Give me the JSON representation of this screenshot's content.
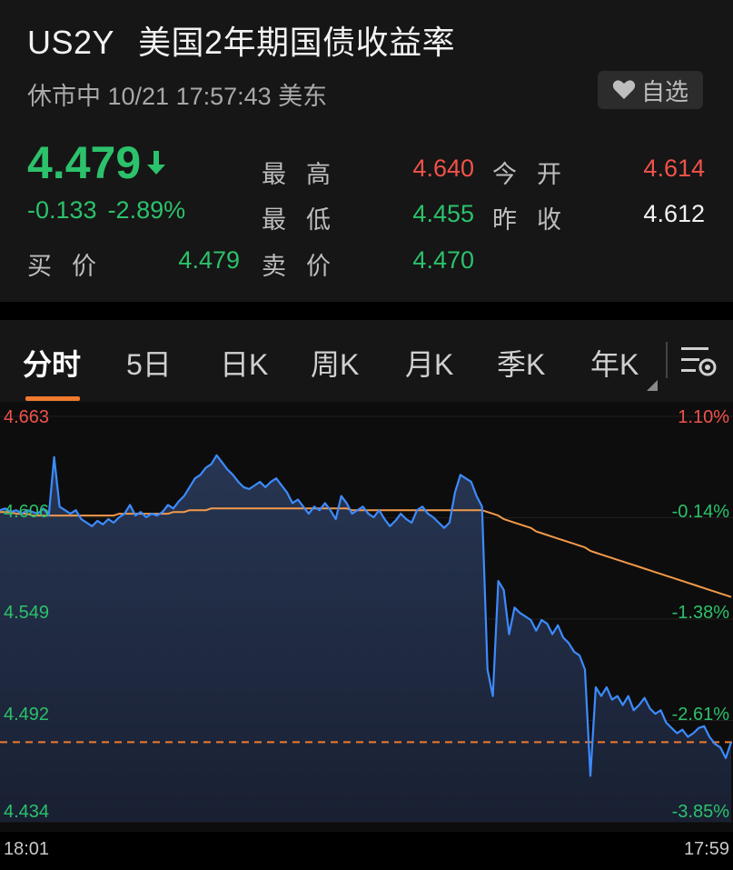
{
  "header": {
    "symbol": "US2Y",
    "name": "美国2年期国债收益率",
    "status": "休市中 10/21 17:57:43 美东",
    "favorite_label": "自选"
  },
  "quote": {
    "price": "4.479",
    "change": "-0.133",
    "change_pct": "-2.89%",
    "high_label": "最高",
    "high": "4.640",
    "open_label": "今开",
    "open": "4.614",
    "low_label": "最低",
    "low": "4.455",
    "prev_close_label": "昨收",
    "prev_close": "4.612",
    "bid_label": "买价",
    "bid": "4.479",
    "ask_label": "卖价",
    "ask": "4.470"
  },
  "tabs": [
    {
      "label": "分时",
      "active": true
    },
    {
      "label": "5日"
    },
    {
      "label": "日K"
    },
    {
      "label": "周K"
    },
    {
      "label": "月K"
    },
    {
      "label": "季K"
    },
    {
      "label": "年K"
    }
  ],
  "colors": {
    "up": "#f0524a",
    "down": "#2cc16b",
    "price_line": "#3d8bff",
    "avg_line": "#f29a4a",
    "accent": "#f07a2e"
  },
  "chart_data": {
    "type": "line",
    "y_labels_left": [
      "4.663",
      "4.606",
      "4.549",
      "4.492",
      "4.434"
    ],
    "y_labels_right": [
      "1.10%",
      "-0.14%",
      "-1.38%",
      "-2.61%",
      "-3.85%"
    ],
    "x_labels": [
      "18:01",
      "17:59"
    ],
    "ylim": [
      4.434,
      4.663
    ],
    "reference_line": 4.479,
    "series": [
      {
        "values": [
          4.61,
          4.611,
          4.609,
          4.61,
          4.608,
          4.61,
          4.609,
          4.608,
          4.611,
          4.607,
          4.64,
          4.612,
          4.61,
          4.608,
          4.61,
          4.605,
          4.603,
          4.601,
          4.604,
          4.602,
          4.605,
          4.603,
          4.606,
          4.608,
          4.613,
          4.607,
          4.609,
          4.606,
          4.608,
          4.607,
          4.609,
          4.613,
          4.611,
          4.615,
          4.618,
          4.623,
          4.628,
          4.63,
          4.634,
          4.636,
          4.641,
          4.637,
          4.633,
          4.63,
          4.626,
          4.623,
          4.622,
          4.624,
          4.626,
          4.623,
          4.626,
          4.628,
          4.624,
          4.62,
          4.614,
          4.616,
          4.612,
          4.608,
          4.612,
          4.61,
          4.614,
          4.61,
          4.605,
          4.618,
          4.614,
          4.608,
          4.61,
          4.612,
          4.608,
          4.606,
          4.61,
          4.605,
          4.601,
          4.604,
          4.608,
          4.605,
          4.603,
          4.61,
          4.612,
          4.608,
          4.606,
          4.603,
          4.6,
          4.603,
          4.62,
          4.63,
          4.628,
          4.626,
          4.618,
          4.612,
          4.52,
          4.505,
          4.57,
          4.565,
          4.54,
          4.555,
          4.552,
          4.55,
          4.548,
          4.542,
          4.548,
          4.546,
          4.54,
          4.545,
          4.538,
          4.535,
          4.53,
          4.528,
          4.52,
          4.46,
          4.51,
          4.505,
          4.51,
          4.503,
          4.505,
          4.5,
          4.505,
          4.497,
          4.5,
          4.504,
          4.498,
          4.495,
          4.497,
          4.49,
          4.487,
          4.484,
          4.486,
          4.482,
          4.484,
          4.487,
          4.488,
          4.482,
          4.478,
          4.476,
          4.47,
          4.479
        ],
        "avg": [
          4.609,
          4.609,
          4.609,
          4.608,
          4.608,
          4.608,
          4.607,
          4.607,
          4.607,
          4.607,
          4.607,
          4.607,
          4.607,
          4.607,
          4.607,
          4.607,
          4.607,
          4.607,
          4.607,
          4.607,
          4.607,
          4.607,
          4.608,
          4.608,
          4.608,
          4.608,
          4.608,
          4.608,
          4.608,
          4.608,
          4.608,
          4.608,
          4.609,
          4.609,
          4.609,
          4.61,
          4.61,
          4.61,
          4.61,
          4.611,
          4.611,
          4.611,
          4.611,
          4.611,
          4.611,
          4.611,
          4.611,
          4.611,
          4.611,
          4.611,
          4.611,
          4.611,
          4.611,
          4.611,
          4.611,
          4.611,
          4.611,
          4.611,
          4.611,
          4.611,
          4.611,
          4.611,
          4.611,
          4.611,
          4.611,
          4.61,
          4.61,
          4.61,
          4.61,
          4.61,
          4.61,
          4.61,
          4.61,
          4.61,
          4.61,
          4.61,
          4.61,
          4.61,
          4.61,
          4.61,
          4.61,
          4.61,
          4.61,
          4.61,
          4.61,
          4.61,
          4.61,
          4.61,
          4.61,
          4.61,
          4.609,
          4.608,
          4.607,
          4.605,
          4.604,
          4.603,
          4.602,
          4.601,
          4.6,
          4.598,
          4.597,
          4.596,
          4.595,
          4.594,
          4.593,
          4.592,
          4.591,
          4.59,
          4.589,
          4.587,
          4.586,
          4.585,
          4.584,
          4.583,
          4.582,
          4.581,
          4.58,
          4.579,
          4.578,
          4.577,
          4.576,
          4.575,
          4.574,
          4.573,
          4.572,
          4.571,
          4.57,
          4.569,
          4.568,
          4.567,
          4.566,
          4.565,
          4.564,
          4.563,
          4.562,
          4.561
        ]
      }
    ]
  }
}
